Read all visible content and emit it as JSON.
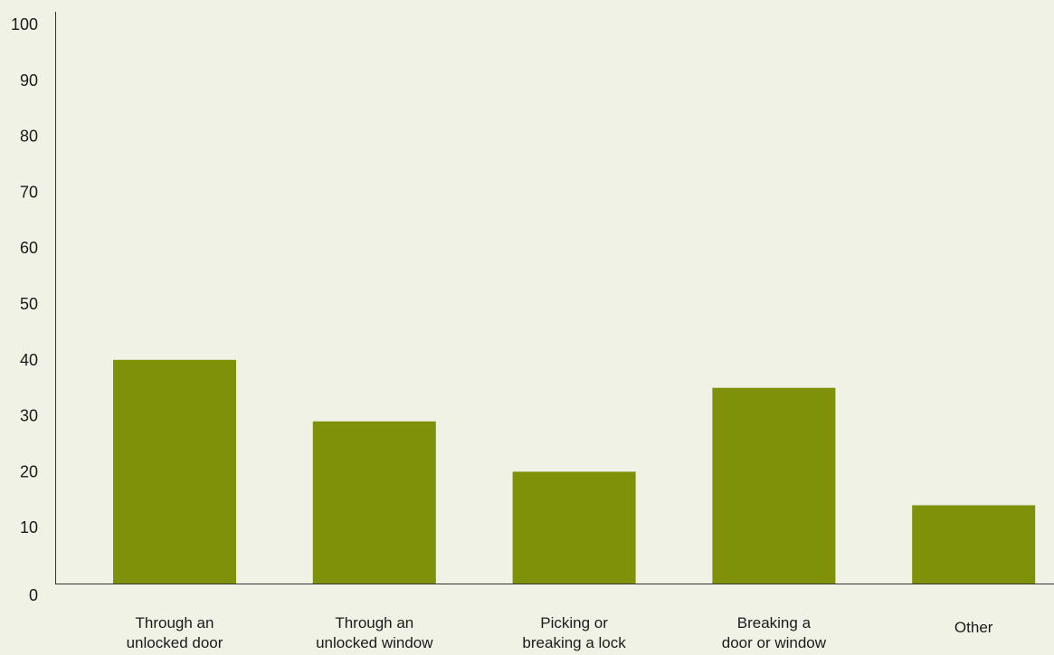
{
  "chart_data": {
    "type": "bar",
    "categories": [
      [
        "Through an",
        "unlocked door"
      ],
      [
        "Through an",
        "unlocked window"
      ],
      [
        "Picking or",
        "breaking a lock"
      ],
      [
        "Breaking a",
        "door or window"
      ],
      [
        "Other"
      ]
    ],
    "values": [
      40,
      29,
      20,
      35,
      14
    ],
    "ylim": [
      0,
      100
    ],
    "yticks": [
      0,
      10,
      20,
      30,
      40,
      50,
      60,
      70,
      80,
      90,
      100
    ],
    "title": "",
    "xlabel": "",
    "ylabel": "",
    "grid": false,
    "bar_color": "#7f9109",
    "background_color": "#f1f2e6"
  }
}
